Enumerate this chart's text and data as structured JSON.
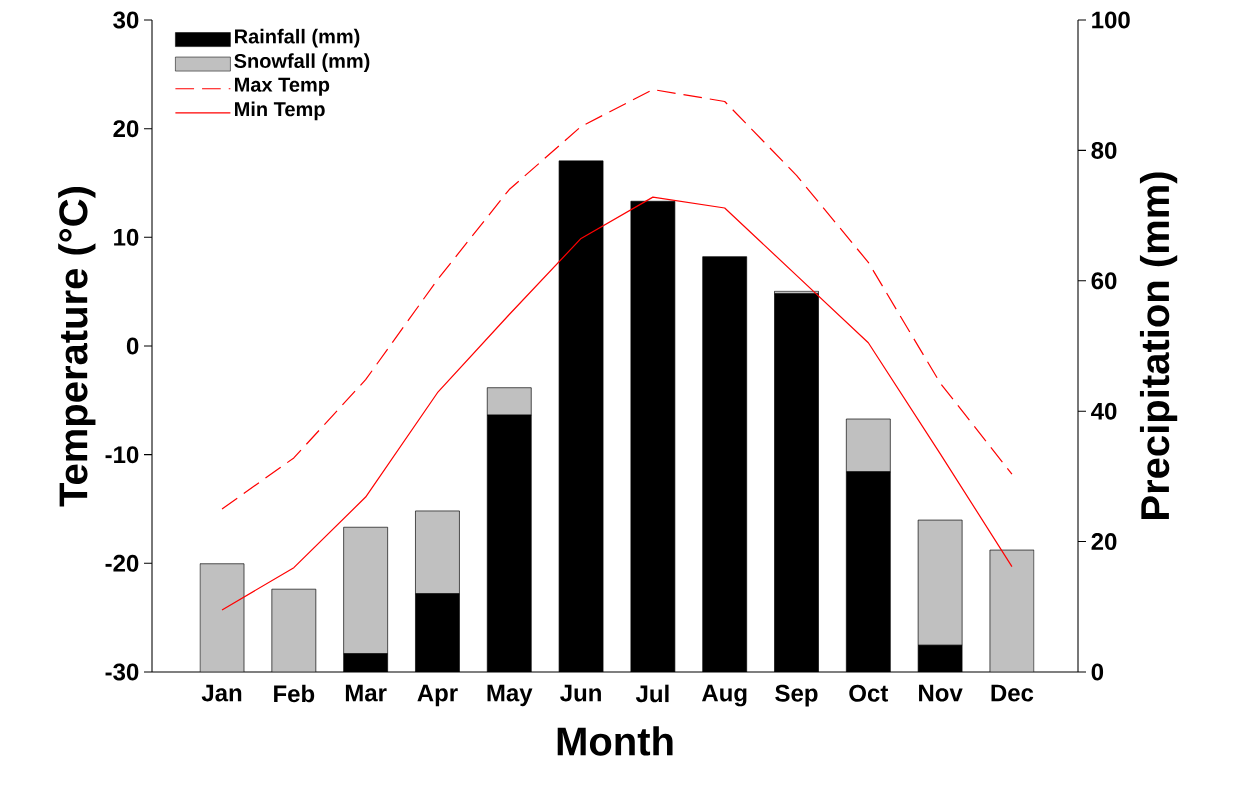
{
  "chart_data": {
    "type": "bar",
    "stacked": true,
    "legend": "top left",
    "categories": [
      "Jan",
      "Feb",
      "Mar",
      "Apr",
      "May",
      "Jun",
      "Jul",
      "Aug",
      "Sep",
      "Oct",
      "Nov",
      "Dec"
    ],
    "xlabel": "Month",
    "ylabel": "Temperature (°C)",
    "y2label": "Precipitation (mm)",
    "ylim": [
      -30,
      30
    ],
    "yticks": [
      -30,
      -20,
      -10,
      0,
      10,
      20,
      30
    ],
    "y2lim": [
      0,
      100
    ],
    "y2ticks": [
      0,
      20,
      40,
      60,
      80,
      100
    ],
    "series": [
      {
        "name": "Rainfall (mm)",
        "axis": "y2",
        "color": "#000000",
        "values": [
          0,
          0,
          2.8,
          12.0,
          39.4,
          78.4,
          72.2,
          63.7,
          58.0,
          30.7,
          4.1,
          0
        ]
      },
      {
        "name": "Snowfall (mm)",
        "axis": "y2",
        "color": "#c0c0c0",
        "values": [
          16.6,
          12.7,
          19.4,
          12.7,
          4.2,
          0,
          0,
          0,
          0.4,
          8.1,
          19.2,
          18.7
        ]
      },
      {
        "name": "Max Temp",
        "type": "line",
        "line_style": "dashed",
        "color": "#ff0000",
        "values": [
          -15.0,
          -10.3,
          -3.1,
          6.1,
          14.4,
          20.2,
          23.6,
          22.5,
          15.7,
          7.7,
          -3.4,
          -11.8
        ]
      },
      {
        "name": "Min Temp",
        "type": "line",
        "line_style": "solid",
        "color": "#ff0000",
        "values": [
          -24.3,
          -20.4,
          -13.9,
          -4.3,
          2.9,
          9.9,
          13.7,
          12.7,
          6.5,
          0.3,
          -9.9,
          -20.3
        ]
      }
    ]
  }
}
